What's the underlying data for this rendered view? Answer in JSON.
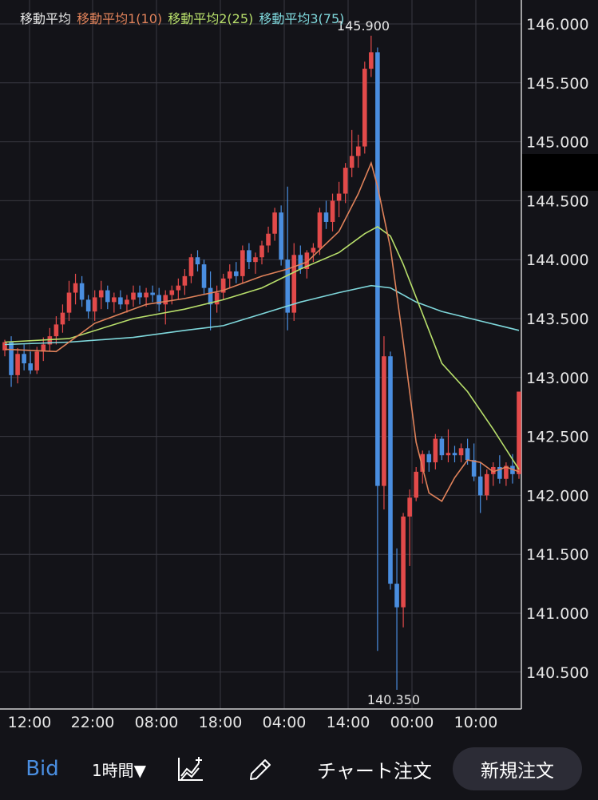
{
  "legend": {
    "title": "移動平均",
    "ma1": "移動平均1(10)",
    "ma2": "移動平均2(25)",
    "ma3": "移動平均3(75)",
    "colors": {
      "title": "#e6e6e6",
      "ma1": "#e0825a",
      "ma2": "#b8df6b",
      "ma3": "#7fd8dc"
    }
  },
  "toolbar": {
    "bid_label": "Bid",
    "timeframe_label": "1時間▼",
    "indicator_icon": "chart-indicator-icon",
    "draw_icon": "pencil-icon",
    "chart_order_label": "チャート注文",
    "new_order_label": "新規注文"
  },
  "colors": {
    "up": "#e24a4a",
    "down": "#4a8ee0",
    "background": "#131318",
    "grid": "#3a3a42"
  },
  "chart_data": {
    "type": "candlestick",
    "y_axis": {
      "ticks": [
        "146.000",
        "145.500",
        "145.000",
        "144.500",
        "144.000",
        "143.500",
        "143.000",
        "142.500",
        "142.000",
        "141.500",
        "141.000",
        "140.500"
      ],
      "min": 140.2,
      "max": 146.1
    },
    "x_axis": {
      "ticks": [
        "12:00",
        "22:00",
        "08:00",
        "18:00",
        "04:00",
        "14:00",
        "00:00",
        "10:00"
      ]
    },
    "annotations": {
      "high_label": "145.900",
      "low_label": "140.350",
      "high": 145.9,
      "low": 140.35
    },
    "candles": [
      [
        143.23,
        143.32,
        143.18,
        143.3
      ],
      [
        143.3,
        143.35,
        142.92,
        143.02
      ],
      [
        143.02,
        143.25,
        142.95,
        143.2
      ],
      [
        143.2,
        143.28,
        143.06,
        143.12
      ],
      [
        143.12,
        143.22,
        143.03,
        143.06
      ],
      [
        143.06,
        143.26,
        143.03,
        143.22
      ],
      [
        143.22,
        143.34,
        143.14,
        143.28
      ],
      [
        143.28,
        143.42,
        143.22,
        143.35
      ],
      [
        143.35,
        143.52,
        143.28,
        143.45
      ],
      [
        143.45,
        143.62,
        143.38,
        143.55
      ],
      [
        143.55,
        143.82,
        143.48,
        143.72
      ],
      [
        143.72,
        143.88,
        143.62,
        143.8
      ],
      [
        143.8,
        143.86,
        143.6,
        143.66
      ],
      [
        143.66,
        143.7,
        143.5,
        143.56
      ],
      [
        143.56,
        143.74,
        143.48,
        143.68
      ],
      [
        143.68,
        143.82,
        143.58,
        143.74
      ],
      [
        143.74,
        143.78,
        143.58,
        143.64
      ],
      [
        143.64,
        143.72,
        143.55,
        143.68
      ],
      [
        143.68,
        143.74,
        143.58,
        143.62
      ],
      [
        143.62,
        143.7,
        143.55,
        143.66
      ],
      [
        143.66,
        143.78,
        143.6,
        143.72
      ],
      [
        143.72,
        143.78,
        143.62,
        143.68
      ],
      [
        143.68,
        143.76,
        143.6,
        143.72
      ],
      [
        143.72,
        143.78,
        143.64,
        143.7
      ],
      [
        143.7,
        143.76,
        143.56,
        143.62
      ],
      [
        143.62,
        143.74,
        143.45,
        143.7
      ],
      [
        143.7,
        143.78,
        143.62,
        143.74
      ],
      [
        143.74,
        143.84,
        143.66,
        143.78
      ],
      [
        143.78,
        143.92,
        143.7,
        143.86
      ],
      [
        143.86,
        144.05,
        143.8,
        144.02
      ],
      [
        144.02,
        144.08,
        143.9,
        143.96
      ],
      [
        143.96,
        144.0,
        143.7,
        143.76
      ],
      [
        143.76,
        143.9,
        143.4,
        143.62
      ],
      [
        143.62,
        143.78,
        143.55,
        143.72
      ],
      [
        143.72,
        143.88,
        143.66,
        143.84
      ],
      [
        143.84,
        143.96,
        143.76,
        143.9
      ],
      [
        143.9,
        143.98,
        143.8,
        143.86
      ],
      [
        143.86,
        144.12,
        143.8,
        144.08
      ],
      [
        144.08,
        144.14,
        143.92,
        143.98
      ],
      [
        143.98,
        144.06,
        143.88,
        144.02
      ],
      [
        144.02,
        144.16,
        143.96,
        144.12
      ],
      [
        144.12,
        144.28,
        144.06,
        144.22
      ],
      [
        144.22,
        144.44,
        144.16,
        144.4
      ],
      [
        144.4,
        144.46,
        143.95,
        144.0
      ],
      [
        144.0,
        144.62,
        143.4,
        143.55
      ],
      [
        143.55,
        144.14,
        143.48,
        144.04
      ],
      [
        144.04,
        144.12,
        143.88,
        143.92
      ],
      [
        143.92,
        144.08,
        143.84,
        144.06
      ],
      [
        144.06,
        144.14,
        143.98,
        144.1
      ],
      [
        144.1,
        144.44,
        144.04,
        144.4
      ],
      [
        144.4,
        144.5,
        144.26,
        144.32
      ],
      [
        144.32,
        144.56,
        144.24,
        144.5
      ],
      [
        144.5,
        144.66,
        144.36,
        144.56
      ],
      [
        144.56,
        144.82,
        144.48,
        144.78
      ],
      [
        144.78,
        145.1,
        144.7,
        144.88
      ],
      [
        144.88,
        145.06,
        144.78,
        144.96
      ],
      [
        144.96,
        145.68,
        144.9,
        145.62
      ],
      [
        145.62,
        145.9,
        145.55,
        145.76
      ],
      [
        145.76,
        145.8,
        140.68,
        142.08
      ],
      [
        142.08,
        143.35,
        141.88,
        143.18
      ],
      [
        143.18,
        143.22,
        141.2,
        141.25
      ],
      [
        141.25,
        141.55,
        140.35,
        141.05
      ],
      [
        141.05,
        141.85,
        140.88,
        141.82
      ],
      [
        141.82,
        142.05,
        141.4,
        141.98
      ],
      [
        141.98,
        142.24,
        141.95,
        142.2
      ],
      [
        142.2,
        142.38,
        142.1,
        142.35
      ],
      [
        142.35,
        142.38,
        142.2,
        142.28
      ],
      [
        142.28,
        142.52,
        142.22,
        142.48
      ],
      [
        142.48,
        142.5,
        142.3,
        142.34
      ],
      [
        142.34,
        142.56,
        142.28,
        142.36
      ],
      [
        142.36,
        142.42,
        142.28,
        142.34
      ],
      [
        142.34,
        142.44,
        142.28,
        142.4
      ],
      [
        142.4,
        142.48,
        142.26,
        142.3
      ],
      [
        142.3,
        142.44,
        142.12,
        142.16
      ],
      [
        142.16,
        142.28,
        141.85,
        142.0
      ],
      [
        142.0,
        142.22,
        141.96,
        142.18
      ],
      [
        142.18,
        142.28,
        142.08,
        142.24
      ],
      [
        142.24,
        142.34,
        142.1,
        142.14
      ],
      [
        142.14,
        142.28,
        142.08,
        142.25
      ],
      [
        142.25,
        142.35,
        142.1,
        142.18
      ],
      [
        142.18,
        142.88,
        142.14,
        142.88
      ]
    ],
    "ma1": [
      [
        0,
        143.24
      ],
      [
        8,
        143.22
      ],
      [
        14,
        143.46
      ],
      [
        22,
        143.62
      ],
      [
        28,
        143.67
      ],
      [
        34,
        143.74
      ],
      [
        40,
        143.86
      ],
      [
        44,
        143.92
      ],
      [
        47,
        143.98
      ],
      [
        52,
        144.24
      ],
      [
        55,
        144.56
      ],
      [
        57,
        144.82
      ],
      [
        58,
        144.62
      ],
      [
        60,
        144.1
      ],
      [
        62,
        143.3
      ],
      [
        64,
        142.45
      ],
      [
        66,
        142.02
      ],
      [
        68,
        141.95
      ],
      [
        70,
        142.15
      ],
      [
        72,
        142.3
      ],
      [
        74,
        142.28
      ],
      [
        76,
        142.2
      ],
      [
        78,
        142.24
      ],
      [
        80,
        142.2
      ]
    ],
    "ma2": [
      [
        0,
        143.3
      ],
      [
        10,
        143.33
      ],
      [
        20,
        143.5
      ],
      [
        28,
        143.58
      ],
      [
        34,
        143.66
      ],
      [
        40,
        143.76
      ],
      [
        46,
        143.92
      ],
      [
        52,
        144.06
      ],
      [
        56,
        144.22
      ],
      [
        58,
        144.28
      ],
      [
        60,
        144.2
      ],
      [
        62,
        143.96
      ],
      [
        64,
        143.68
      ],
      [
        66,
        143.4
      ],
      [
        68,
        143.12
      ],
      [
        72,
        142.88
      ],
      [
        76,
        142.56
      ],
      [
        80,
        142.22
      ]
    ],
    "ma3": [
      [
        0,
        143.28
      ],
      [
        10,
        143.3
      ],
      [
        20,
        143.34
      ],
      [
        28,
        143.4
      ],
      [
        34,
        143.44
      ],
      [
        40,
        143.54
      ],
      [
        46,
        143.64
      ],
      [
        52,
        143.72
      ],
      [
        57,
        143.78
      ],
      [
        60,
        143.76
      ],
      [
        64,
        143.64
      ],
      [
        68,
        143.56
      ],
      [
        74,
        143.48
      ],
      [
        80,
        143.4
      ]
    ]
  }
}
